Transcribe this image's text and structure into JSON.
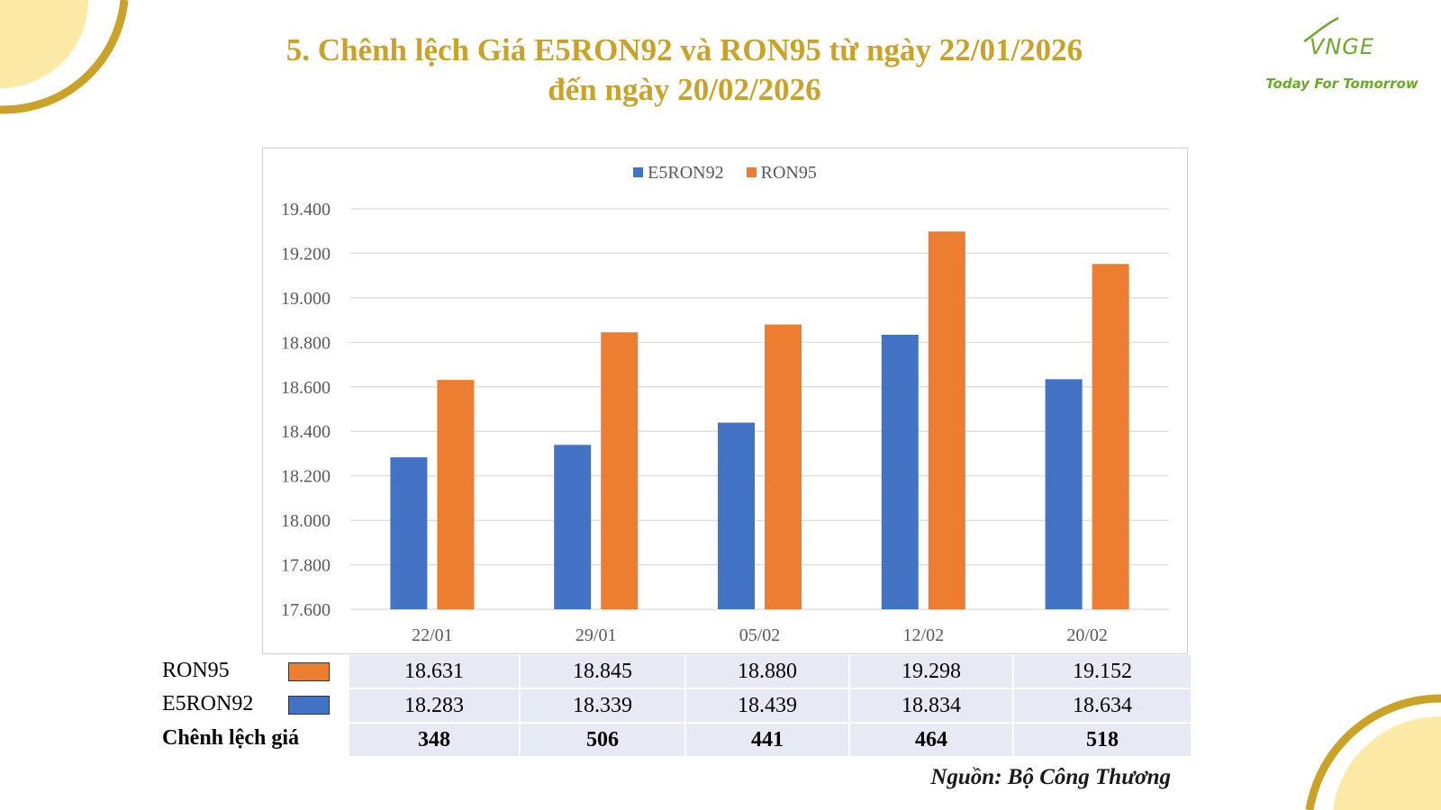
{
  "title_line1": "5. Chênh lệch Giá E5RON92 và RON95 từ ngày 22/01/2026",
  "title_line2": "đến ngày 20/02/2026",
  "logo": {
    "mark": "VNGE",
    "tagline": "Today For Tomorrow",
    "color": "#6aaa2a"
  },
  "colors": {
    "title": "#c9a227",
    "e5ron92": "#4472c4",
    "ron95": "#ed7d31",
    "table_bg": "#e7eaf5",
    "corner_gold": "#c9a227",
    "corner_fill": "#fde9a6"
  },
  "chart_data": {
    "type": "bar",
    "categories": [
      "22/01",
      "29/01",
      "05/02",
      "12/02",
      "20/02"
    ],
    "series": [
      {
        "name": "E5RON92",
        "color": "#4472c4",
        "values": [
          18283,
          18339,
          18439,
          18834,
          18634
        ]
      },
      {
        "name": "RON95",
        "color": "#ed7d31",
        "values": [
          18631,
          18845,
          18880,
          19298,
          19152
        ]
      }
    ],
    "ylim": [
      17600,
      19400
    ],
    "ytick_step": 200,
    "yticks": [
      "17.600",
      "17.800",
      "18.000",
      "18.200",
      "18.400",
      "18.600",
      "18.800",
      "19.000",
      "19.200",
      "19.400"
    ],
    "grid": true,
    "legend_position": "top-center"
  },
  "table": {
    "rows": [
      {
        "label": "RON95",
        "swatch": "#ed7d31",
        "values": [
          "18.631",
          "18.845",
          "18.880",
          "19.298",
          "19.152"
        ]
      },
      {
        "label": "E5RON92",
        "swatch": "#4472c4",
        "values": [
          "18.283",
          "18.339",
          "18.439",
          "18.834",
          "18.634"
        ]
      },
      {
        "label": "Chênh lệch giá",
        "values": [
          "348",
          "506",
          "441",
          "464",
          "518"
        ]
      }
    ]
  },
  "source": "Nguồn: Bộ Công Thương"
}
